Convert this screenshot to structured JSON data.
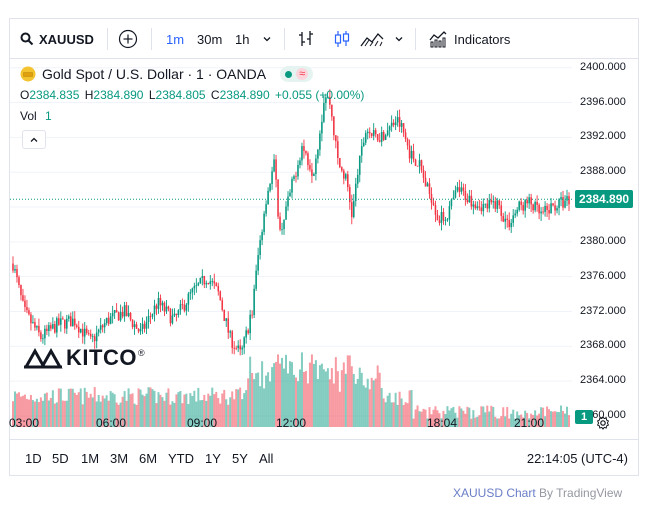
{
  "toolbar": {
    "symbol": "XAUUSD",
    "intervals": [
      "1m",
      "30m",
      "1h"
    ],
    "indicators_label": "Indicators"
  },
  "legend": {
    "title": "Gold Spot / U.S. Dollar · 1 · OANDA",
    "o_label": "O",
    "o_value": "2384.835",
    "h_label": "H",
    "h_value": "2384.890",
    "l_label": "L",
    "l_value": "2384.805",
    "c_label": "C",
    "c_value": "2384.890",
    "change": "+0.055 (+0.00%)",
    "vol_label": "Vol",
    "vol_value": "1"
  },
  "logo": {
    "text": "KITCO"
  },
  "price_axis": {
    "ticks": [
      "2400.000",
      "2396.000",
      "2392.000",
      "2388.000",
      "2384.890",
      "2380.000",
      "2376.000",
      "2372.000",
      "2368.000",
      "2364.000",
      "2360.000"
    ],
    "last_price": "2384.890",
    "vol_badge": "1"
  },
  "time_axis": {
    "ticks": [
      "03:00",
      "06:00",
      "09:00",
      "12:00",
      "18:04",
      "21:00"
    ]
  },
  "ranges": [
    "1D",
    "5D",
    "1M",
    "3M",
    "6M",
    "YTD",
    "1Y",
    "5Y",
    "All"
  ],
  "clock": "22:14:05 (UTC-4)",
  "attribution": {
    "main": "XAUUSD Chart",
    "by": " By TradingView"
  },
  "colors": {
    "up": "#089981",
    "down": "#f23645",
    "accent": "#2962ff",
    "grid": "#f0f3fa"
  },
  "chart_data": {
    "type": "candlestick",
    "title": "Gold Spot / U.S. Dollar · 1 · OANDA",
    "ylim": [
      2360,
      2401
    ],
    "x_ticks": [
      "03:00",
      "06:00",
      "09:00",
      "12:00",
      "18:04",
      "21:00"
    ],
    "y_ticks": [
      2400,
      2396,
      2392,
      2388,
      2384,
      2380,
      2376,
      2372,
      2368,
      2364,
      2360
    ],
    "close_path": [
      [
        0,
        2377.5
      ],
      [
        0.02,
        2372
      ],
      [
        0.05,
        2369
      ],
      [
        0.08,
        2370.5
      ],
      [
        0.11,
        2371
      ],
      [
        0.14,
        2368.5
      ],
      [
        0.17,
        2371
      ],
      [
        0.2,
        2372
      ],
      [
        0.23,
        2369.5
      ],
      [
        0.26,
        2373
      ],
      [
        0.29,
        2371
      ],
      [
        0.32,
        2374
      ],
      [
        0.35,
        2376
      ],
      [
        0.37,
        2374
      ],
      [
        0.39,
        2369
      ],
      [
        0.41,
        2367
      ],
      [
        0.43,
        2372
      ],
      [
        0.44,
        2378
      ],
      [
        0.455,
        2385
      ],
      [
        0.47,
        2389
      ],
      [
        0.48,
        2381
      ],
      [
        0.5,
        2386
      ],
      [
        0.52,
        2391
      ],
      [
        0.54,
        2388
      ],
      [
        0.555,
        2394
      ],
      [
        0.56,
        2397
      ],
      [
        0.57,
        2396
      ],
      [
        0.585,
        2389
      ],
      [
        0.6,
        2387
      ],
      [
        0.61,
        2383
      ],
      [
        0.62,
        2388
      ],
      [
        0.635,
        2393
      ],
      [
        0.65,
        2392
      ],
      [
        0.67,
        2392.5
      ],
      [
        0.69,
        2394
      ],
      [
        0.7,
        2393
      ],
      [
        0.715,
        2390
      ],
      [
        0.73,
        2389
      ],
      [
        0.745,
        2386
      ],
      [
        0.755,
        2385
      ],
      [
        0.765,
        2382.5
      ],
      [
        0.78,
        2383
      ],
      [
        0.8,
        2386
      ],
      [
        0.82,
        2385
      ],
      [
        0.85,
        2384
      ],
      [
        0.87,
        2384.5
      ],
      [
        0.89,
        2382
      ],
      [
        0.91,
        2384
      ],
      [
        0.93,
        2384.5
      ],
      [
        0.95,
        2383
      ],
      [
        0.97,
        2384
      ],
      [
        1.0,
        2384.89
      ]
    ]
  }
}
